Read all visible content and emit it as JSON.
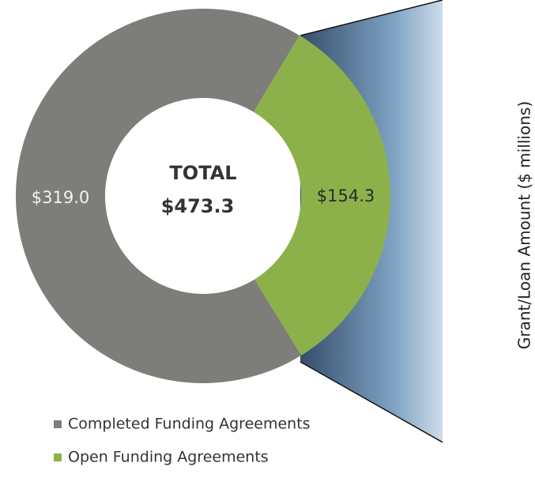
{
  "chart_data": {
    "type": "donut",
    "categories": [
      "Completed Funding Agreements",
      "Open Funding Agreements"
    ],
    "values": [
      319.0,
      154.3
    ],
    "value_labels": [
      "$319.0",
      "$154.3"
    ],
    "colors": [
      "#7d7e7a",
      "#8cb14b"
    ],
    "center_text": [
      "TOTAL",
      "$473.3"
    ],
    "y_label": "Grant/Loan Amount ($ millions)",
    "legend": "bottom"
  }
}
